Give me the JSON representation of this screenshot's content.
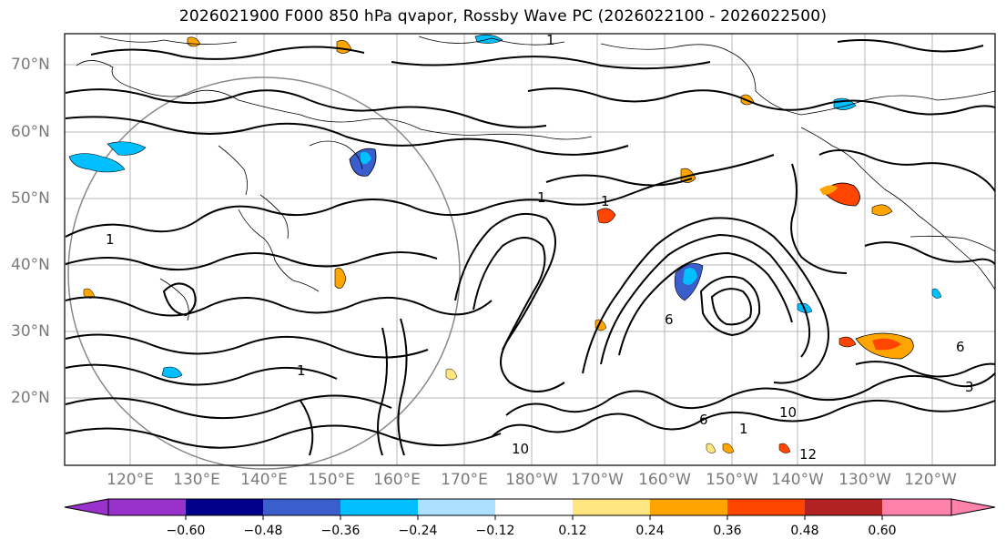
{
  "title": "2026021900 F000 850 hPa qvapor, Rossby Wave PC (2026022100 - 2026022500)",
  "map": {
    "lat_labels": [
      "70°N",
      "60°N",
      "50°N",
      "40°N",
      "30°N",
      "20°N"
    ],
    "lon_labels": [
      "120°E",
      "130°E",
      "140°E",
      "150°E",
      "160°E",
      "170°E",
      "180°W",
      "170°W",
      "160°W",
      "150°W",
      "140°W",
      "130°W",
      "120°W"
    ],
    "contour_labels": [
      "1",
      "1",
      "1",
      "1",
      "1",
      "1",
      "6",
      "6",
      "6",
      "10",
      "10",
      "12",
      "3"
    ]
  },
  "colorbar": {
    "tick_labels": [
      "−0.60",
      "−0.48",
      "−0.36",
      "−0.24",
      "−0.12",
      "0.12",
      "0.24",
      "0.36",
      "0.48",
      "0.60"
    ],
    "colors": [
      "#9932CC",
      "#00008B",
      "#3A5FCD",
      "#00BFFF",
      "#ADDFFF",
      "#FFFFFF",
      "#FFE680",
      "#FFA500",
      "#FF4500",
      "#B22222",
      "#FF82AB"
    ]
  }
}
